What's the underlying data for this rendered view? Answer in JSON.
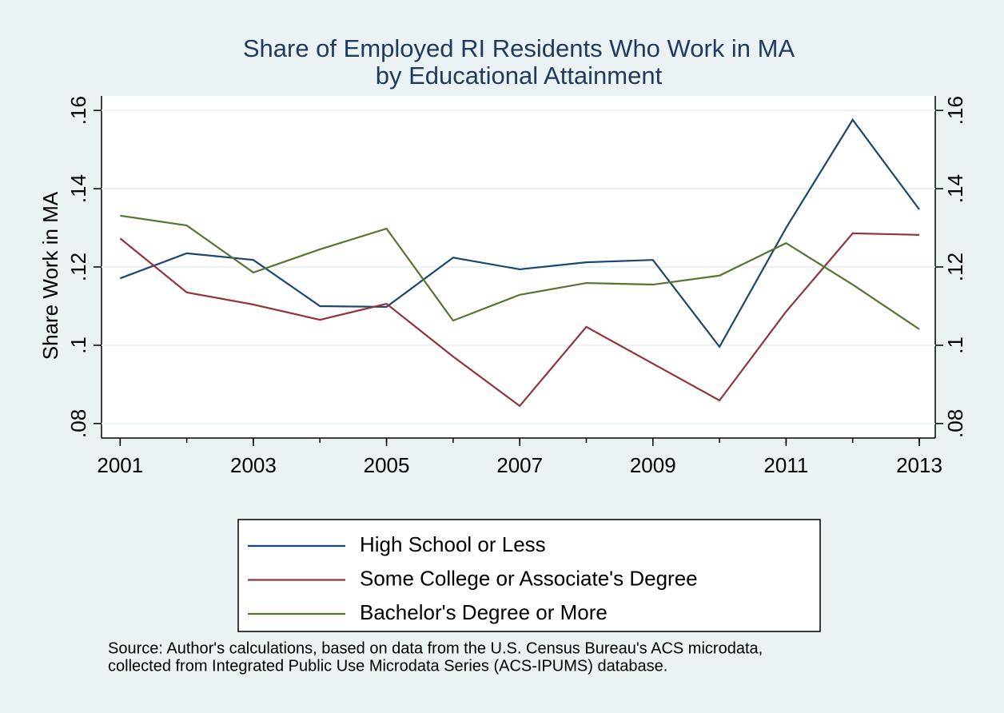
{
  "chart_data": {
    "type": "line",
    "title": "Share of Employed RI Residents Who Work in MA",
    "subtitle": "by Educational Attainment",
    "y_label": "Share Work in MA",
    "note_lines": [
      "Source: Author's calculations, based on data from the U.S. Census Bureau's ACS microdata,",
      "collected from Integrated Public Use Microdata Series (ACS-IPUMS) database."
    ],
    "x": [
      2001,
      2002,
      2003,
      2004,
      2005,
      2006,
      2007,
      2008,
      2009,
      2010,
      2011,
      2012,
      2013
    ],
    "series": [
      {
        "name": "High School or Less",
        "color": "#1a476f",
        "values": [
          0.1171,
          0.1235,
          0.1218,
          0.11,
          0.1098,
          0.1224,
          0.1194,
          0.1212,
          0.1218,
          0.0996,
          0.13,
          0.1576,
          0.1347
        ]
      },
      {
        "name": "Some College or Associate's Degree",
        "color": "#90353b",
        "values": [
          0.1273,
          0.1135,
          0.1104,
          0.1065,
          0.1106,
          0.0971,
          0.0845,
          0.1047,
          0.0953,
          0.0859,
          0.1086,
          0.1286,
          0.1282
        ]
      },
      {
        "name": "Bachelor's Degree or More",
        "color": "#55752f",
        "values": [
          0.1331,
          0.1306,
          0.1186,
          0.1245,
          0.1298,
          0.1063,
          0.1129,
          0.1159,
          0.1155,
          0.1178,
          0.1261,
          0.1155,
          0.1041
        ]
      }
    ],
    "xlim": [
      2000.72,
      2013.24
    ],
    "xticks": [
      2001,
      2003,
      2005,
      2007,
      2009,
      2011,
      2013
    ],
    "ylim": [
      0.0763,
      0.1637
    ],
    "yticks": [
      {
        "value": 0.08,
        "label": ".08"
      },
      {
        "value": 0.1,
        "label": ".1"
      },
      {
        "value": 0.12,
        "label": ".12"
      },
      {
        "value": 0.14,
        "label": ".14"
      },
      {
        "value": 0.16,
        "label": ".16"
      }
    ],
    "grid": true,
    "legend": "bottom"
  }
}
